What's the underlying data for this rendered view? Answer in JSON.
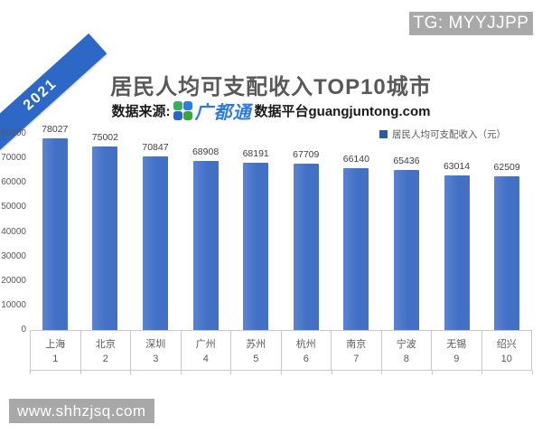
{
  "badge": {
    "text": "TG: MYYJJPP"
  },
  "ribbon": {
    "year": "2021"
  },
  "header": {
    "title": "居民人均可支配收入TOP10城市",
    "source_prefix": "数据来源:",
    "source_brand": "广都通",
    "source_suffix": "数据平台guangjuntong.com"
  },
  "legend": {
    "label": "居民人均可支配收入（元）"
  },
  "watermark": {
    "text": "www.shhzjsq.com"
  },
  "colors": {
    "bar": "#4170c4",
    "bar_edge_light": "#5b84d2",
    "legend_swatch": "#2f5b9d",
    "ribbon_blue": "#2d68c6",
    "badge_gray": "#a9a9a9",
    "title_gray": "#595959"
  },
  "chart_data": {
    "type": "bar",
    "title": "居民人均可支配收入TOP10城市",
    "series_name": "居民人均可支配收入（元）",
    "categories": [
      "上海",
      "北京",
      "深圳",
      "广州",
      "苏州",
      "杭州",
      "南京",
      "宁波",
      "无锡",
      "绍兴"
    ],
    "ranks": [
      "1",
      "2",
      "3",
      "4",
      "5",
      "6",
      "7",
      "8",
      "9",
      "10"
    ],
    "values": [
      78027,
      75002,
      70847,
      68908,
      68191,
      67709,
      66140,
      65436,
      63014,
      62509
    ],
    "ylim": [
      0,
      80000
    ],
    "ytick_interval": 10000,
    "yticks": [
      0,
      10000,
      20000,
      30000,
      40000,
      50000,
      60000,
      70000,
      80000
    ],
    "grid": false,
    "legend_position": "top-right",
    "xlabel": "",
    "ylabel": ""
  }
}
